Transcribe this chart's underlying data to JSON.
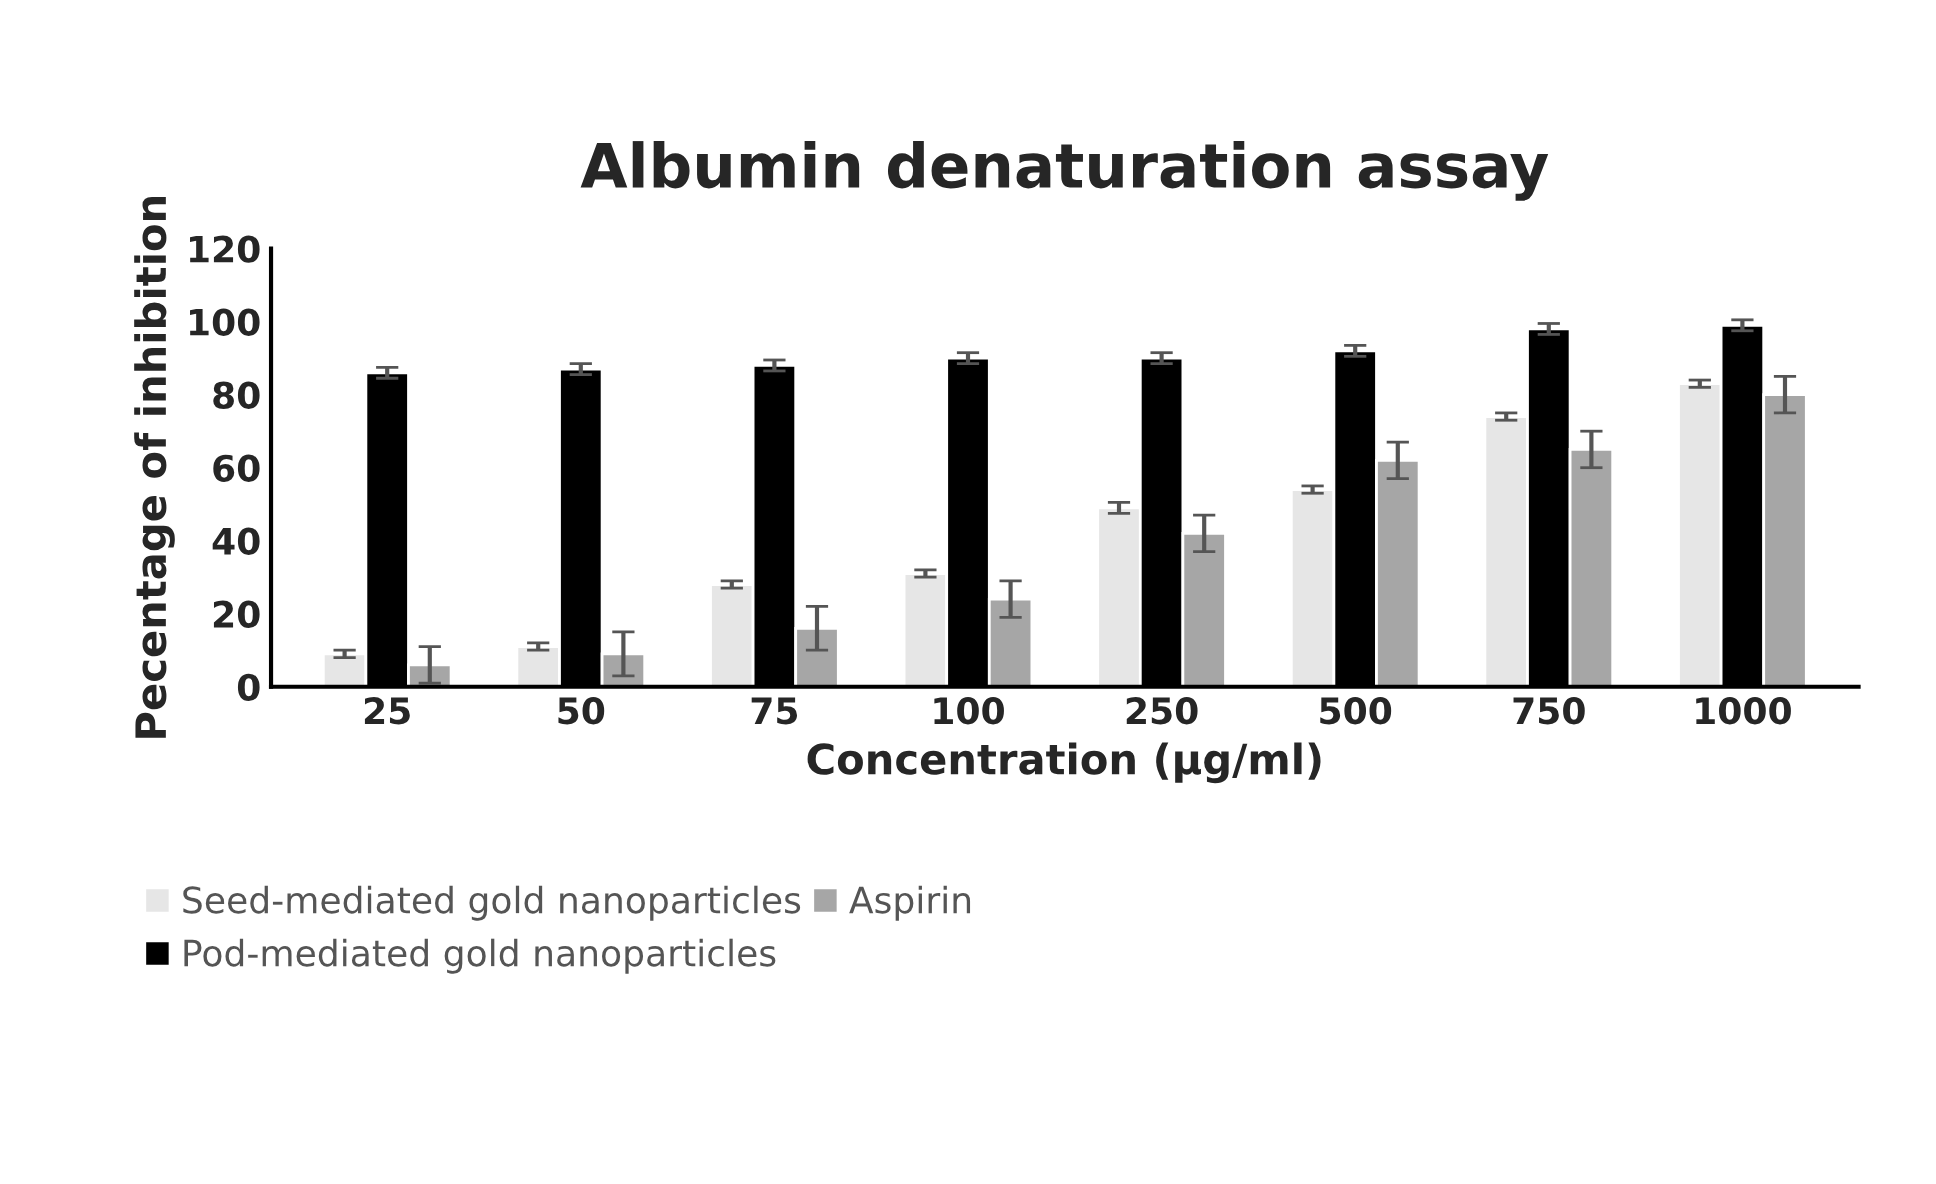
{
  "chart_data": {
    "type": "bar",
    "title": "Albumin denaturation assay",
    "xlabel": "Concentration (µg/ml)",
    "ylabel": "Pecentage of inhibition",
    "categories": [
      "25",
      "50",
      "75",
      "100",
      "250",
      "500",
      "750",
      "1000"
    ],
    "series": [
      {
        "name": "Seed-mediated gold nanoparticles",
        "color": "#e6e6e6",
        "values": [
          9,
          11,
          28,
          31,
          49,
          54,
          74,
          83
        ],
        "errors": [
          1,
          1,
          1,
          1,
          1.5,
          1,
          1,
          1
        ]
      },
      {
        "name": "Pod-mediated gold nanoparticles",
        "color": "#000000",
        "values": [
          86,
          87,
          88,
          90,
          90,
          92,
          98,
          99
        ],
        "errors": [
          1.5,
          1.5,
          1.5,
          1.5,
          1.5,
          1.5,
          1.5,
          1.5
        ]
      },
      {
        "name": "Aspirin",
        "color": "#a6a6a6",
        "values": [
          6,
          9,
          16,
          24,
          42,
          62,
          65,
          80
        ],
        "errors": [
          5,
          6,
          6,
          5,
          5,
          5,
          5,
          5
        ]
      }
    ],
    "ylim": [
      0,
      120
    ],
    "yticks": [
      0,
      20,
      40,
      60,
      80,
      100,
      120
    ],
    "grid": false,
    "legend": "bottom"
  }
}
